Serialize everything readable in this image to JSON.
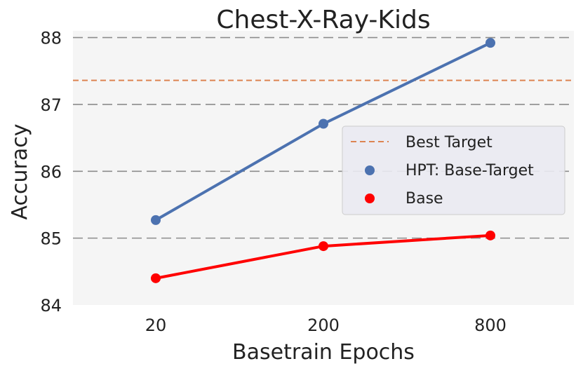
{
  "chart_data": {
    "type": "line",
    "title": "Chest-X-Ray-Kids",
    "xlabel": "Basetrain Epochs",
    "ylabel": "Accuracy",
    "categories": [
      "20",
      "200",
      "800"
    ],
    "ylim": [
      84,
      88.1
    ],
    "yticks": [
      "84",
      "85",
      "86",
      "87",
      "88"
    ],
    "grid": "horizontal dashed",
    "legend_position": "right",
    "series": [
      {
        "name": "HPT: Base-Target",
        "values": [
          85.27,
          86.71,
          87.92
        ],
        "color": "#4c72b0"
      },
      {
        "name": "Base",
        "values": [
          84.4,
          84.88,
          85.04
        ],
        "color": "#ff0000"
      }
    ],
    "reference_lines": [
      {
        "name": "Best Target",
        "value": 87.36,
        "color": "#dd8452"
      }
    ]
  }
}
